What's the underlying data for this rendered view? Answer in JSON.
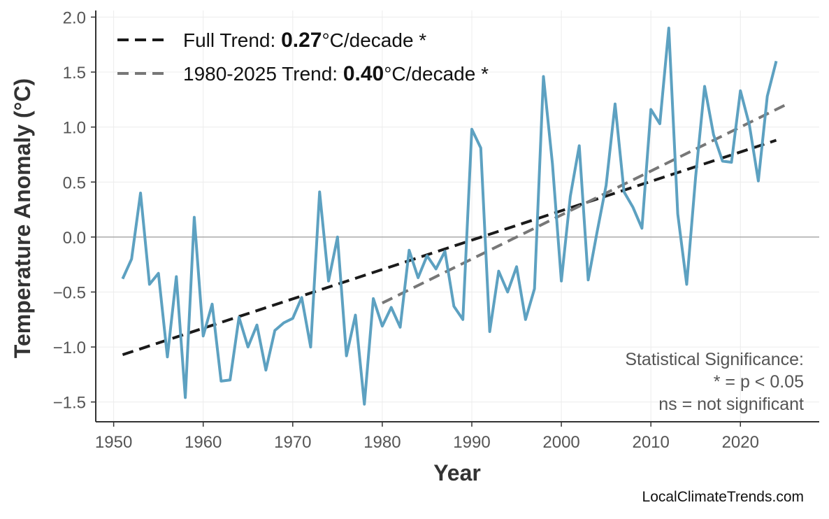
{
  "chart_data": {
    "type": "line",
    "title": "",
    "xlabel": "Year",
    "ylabel": "Temperature Anomaly (°C)",
    "xlim": [
      1948,
      2028.8
    ],
    "ylim": [
      -1.68,
      2.06
    ],
    "xticks": [
      1950,
      1960,
      1970,
      1980,
      1990,
      2000,
      2010,
      2020
    ],
    "yticks": [
      -1.5,
      -1.0,
      -0.5,
      0.0,
      0.5,
      1.0,
      1.5,
      2.0
    ],
    "ytick_labels": [
      "−1.5",
      "−1.0",
      "−0.5",
      "0.0",
      "0.5",
      "1.0",
      "1.5",
      "2.0"
    ],
    "grid": true,
    "zero_line": true,
    "series": [
      {
        "color": "#5a9fc0",
        "x": [
          1951,
          1952,
          1953,
          1954,
          1955,
          1956,
          1957,
          1958,
          1959,
          1960,
          1961,
          1962,
          1963,
          1964,
          1965,
          1966,
          1967,
          1968,
          1969,
          1970,
          1971,
          1972,
          1973,
          1974,
          1975,
          1976,
          1977,
          1978,
          1979,
          1980,
          1981,
          1982,
          1983,
          1984,
          1985,
          1986,
          1987,
          1988,
          1989,
          1990,
          1991,
          1992,
          1993,
          1994,
          1995,
          1996,
          1997,
          1998,
          1999,
          2000,
          2001,
          2002,
          2003,
          2004,
          2005,
          2006,
          2007,
          2008,
          2009,
          2010,
          2011,
          2012,
          2013,
          2014,
          2015,
          2016,
          2017,
          2018,
          2019,
          2020,
          2021,
          2022,
          2023,
          2024
        ],
        "y": [
          -0.38,
          -0.2,
          0.4,
          -0.43,
          -0.33,
          -1.09,
          -0.36,
          -1.46,
          0.18,
          -0.9,
          -0.61,
          -1.31,
          -1.3,
          -0.73,
          -1.0,
          -0.8,
          -1.21,
          -0.85,
          -0.78,
          -0.74,
          -0.55,
          -1.0,
          0.41,
          -0.4,
          0.0,
          -1.08,
          -0.71,
          -1.52,
          -0.56,
          -0.81,
          -0.64,
          -0.82,
          -0.12,
          -0.37,
          -0.17,
          -0.29,
          -0.13,
          -0.63,
          -0.75,
          0.98,
          0.81,
          -0.86,
          -0.31,
          -0.5,
          -0.27,
          -0.75,
          -0.47,
          1.46,
          0.67,
          -0.4,
          0.37,
          0.83,
          -0.39,
          0.05,
          0.47,
          1.21,
          0.41,
          0.27,
          0.08,
          1.16,
          1.03,
          1.9,
          0.21,
          -0.43,
          0.55,
          1.37,
          0.93,
          0.69,
          0.68,
          1.33,
          1.02,
          0.51,
          1.28,
          1.6
        ]
      }
    ],
    "trends": [
      {
        "label_prefix": "Full Trend: ",
        "value": "0.27",
        "label_suffix": "°C/decade *",
        "color": "#1a1a1a",
        "x": [
          1951,
          2024
        ],
        "y": [
          -1.07,
          0.88
        ]
      },
      {
        "label_prefix": "1980-2025 Trend: ",
        "value": "0.40",
        "label_suffix": "°C/decade *",
        "color": "#777777",
        "x": [
          1980,
          2025
        ],
        "y": [
          -0.6,
          1.2
        ]
      }
    ],
    "legend_position": "top-left",
    "annotation": [
      "Statistical Significance:",
      "* = p < 0.05",
      "ns = not significant"
    ],
    "source": "LocalClimateTrends.com"
  }
}
